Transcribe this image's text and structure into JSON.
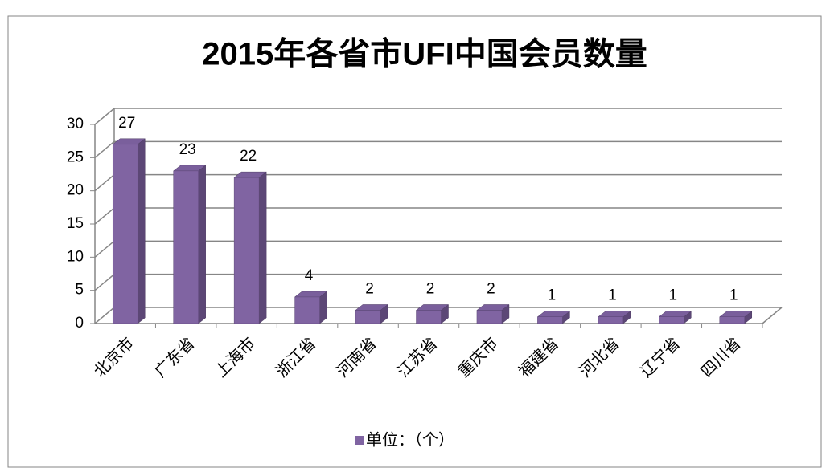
{
  "chart_data": {
    "type": "bar",
    "title": "2015年各省市UFI中国会员数量",
    "categories": [
      "北京市",
      "广东省",
      "上海市",
      "浙江省",
      "河南省",
      "江苏省",
      "重庆市",
      "福建省",
      "河北省",
      "辽宁省",
      "四川省"
    ],
    "series": [
      {
        "name": "单位：（个）",
        "color": "#8064a2",
        "values": [
          27,
          23,
          22,
          4,
          2,
          2,
          2,
          1,
          1,
          1,
          1
        ]
      }
    ],
    "ylim": [
      0,
      30
    ],
    "yticks": [
      0,
      5,
      10,
      15,
      20,
      25,
      30
    ],
    "grid": true,
    "legend": "bottom"
  }
}
